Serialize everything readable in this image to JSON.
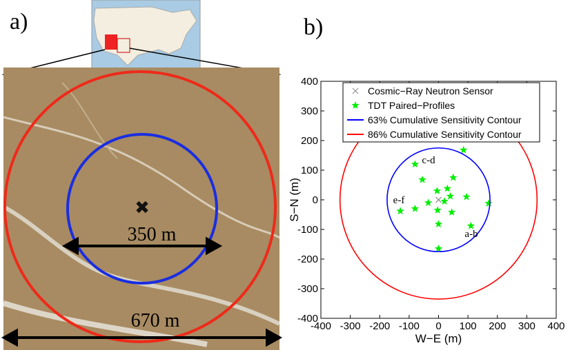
{
  "figure": {
    "panel_a_label": "a)",
    "panel_b_label": "b)",
    "distance_labels": [
      "350 m",
      "670 m"
    ]
  },
  "chart_data": {
    "type": "scatter",
    "xlabel": "W−E (m)",
    "ylabel": "S−N (m)",
    "xlim": [
      -400,
      400
    ],
    "ylim": [
      -400,
      400
    ],
    "xticks": [
      -400,
      -300,
      -200,
      -100,
      0,
      100,
      200,
      300,
      400
    ],
    "yticks": [
      -400,
      -300,
      -200,
      -100,
      0,
      100,
      200,
      300,
      400
    ],
    "grid": false,
    "legend": "top",
    "series": [
      {
        "name": "Cosmic−Ray Neutron Sensor",
        "color": "#888888",
        "marker": "x",
        "x": [
          0
        ],
        "y": [
          0
        ]
      },
      {
        "name": "TDT Paired−Profiles",
        "color": "#00ee00",
        "marker": "star",
        "x": [
          85,
          -80,
          -55,
          50,
          -5,
          30,
          40,
          -35,
          20,
          95,
          170,
          -80,
          -130,
          -3,
          45,
          0,
          110,
          0
        ],
        "y": [
          168,
          120,
          68,
          75,
          30,
          38,
          12,
          -10,
          -5,
          10,
          -12,
          -30,
          -38,
          -35,
          -42,
          -82,
          -88,
          -165
        ]
      },
      {
        "name": "63% Cumulative Sensitivity Contour",
        "color": "#0000ff",
        "marker": "circle",
        "radius": 175
      },
      {
        "name": "86% Cumulative Sensitivity Contour",
        "color": "#ff0000",
        "marker": "circle",
        "radius": 335
      }
    ],
    "annotations": [
      "a-b",
      "c-d",
      "e-f"
    ]
  }
}
